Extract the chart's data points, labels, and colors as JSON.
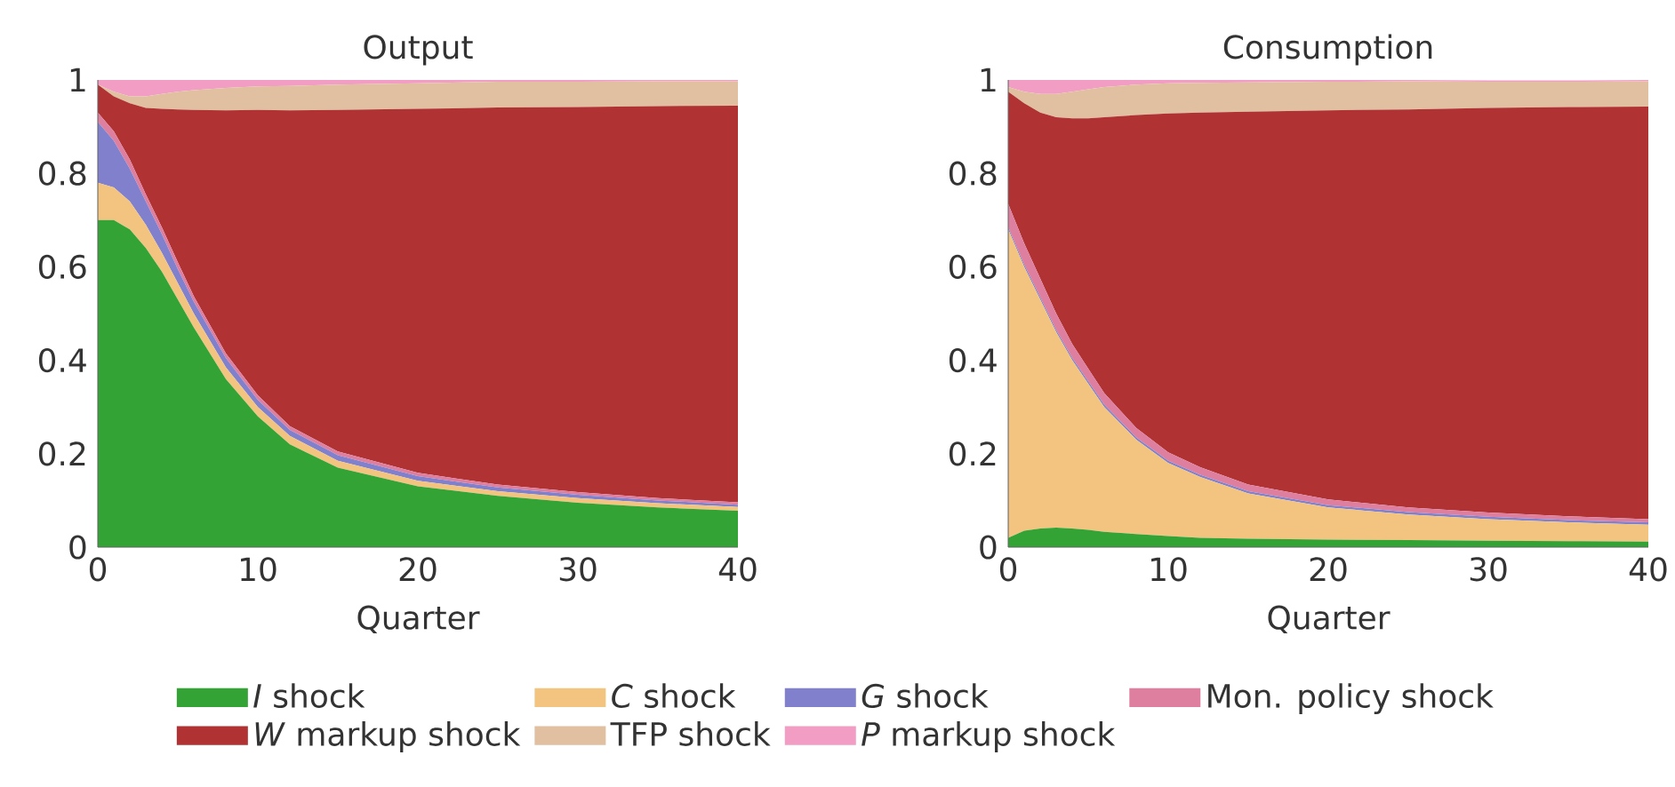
{
  "chart_data": [
    {
      "type": "area",
      "title": "Output",
      "xlabel": "Quarter",
      "stacked": true,
      "legend": "bottom",
      "x": [
        0,
        1,
        2,
        3,
        4,
        5,
        6,
        8,
        10,
        12,
        15,
        20,
        25,
        30,
        35,
        40
      ],
      "xlim": [
        0,
        40
      ],
      "xticks": [
        0,
        10,
        20,
        30,
        40
      ],
      "ylim": [
        0,
        1
      ],
      "yticks": [
        0,
        0.2,
        0.4,
        0.6,
        0.8,
        1
      ],
      "series": [
        {
          "name": "*I* shock",
          "color": "#33a335",
          "values": [
            0.7,
            0.7,
            0.68,
            0.64,
            0.59,
            0.53,
            0.47,
            0.36,
            0.28,
            0.22,
            0.17,
            0.13,
            0.11,
            0.095,
            0.085,
            0.078
          ]
        },
        {
          "name": "*C* shock",
          "color": "#f2c47f",
          "values": [
            0.08,
            0.07,
            0.06,
            0.05,
            0.04,
            0.035,
            0.03,
            0.025,
            0.02,
            0.018,
            0.015,
            0.012,
            0.01,
            0.01,
            0.009,
            0.008
          ]
        },
        {
          "name": "*G* shock",
          "color": "#8080cc",
          "values": [
            0.13,
            0.1,
            0.07,
            0.05,
            0.04,
            0.03,
            0.025,
            0.02,
            0.015,
            0.013,
            0.012,
            0.01,
            0.008,
            0.007,
            0.006,
            0.005
          ]
        },
        {
          "name": "Mon. policy shock",
          "color": "#de7f9f",
          "values": [
            0.02,
            0.02,
            0.02,
            0.015,
            0.015,
            0.015,
            0.012,
            0.01,
            0.01,
            0.008,
            0.008,
            0.007,
            0.006,
            0.006,
            0.005,
            0.005
          ]
        },
        {
          "name": "*W* markup shock",
          "color": "#b03232",
          "values": [
            0.06,
            0.075,
            0.12,
            0.185,
            0.253,
            0.327,
            0.399,
            0.52,
            0.611,
            0.676,
            0.731,
            0.779,
            0.807,
            0.824,
            0.839,
            0.849
          ]
        },
        {
          "name": "TFP shock",
          "color": "#e0c0a0",
          "values": [
            0.0,
            0.01,
            0.015,
            0.025,
            0.032,
            0.038,
            0.042,
            0.048,
            0.05,
            0.052,
            0.054,
            0.055,
            0.055,
            0.054,
            0.053,
            0.052
          ]
        },
        {
          "name": "*P* markup shock",
          "color": "#f29dc4",
          "values": [
            0.01,
            0.025,
            0.035,
            0.035,
            0.03,
            0.025,
            0.022,
            0.017,
            0.015,
            0.013,
            0.01,
            0.007,
            0.005,
            0.004,
            0.003,
            0.003
          ]
        }
      ]
    },
    {
      "type": "area",
      "title": "Consumption",
      "xlabel": "Quarter",
      "stacked": true,
      "x": [
        0,
        1,
        2,
        3,
        4,
        5,
        6,
        8,
        10,
        12,
        15,
        20,
        25,
        30,
        35,
        40
      ],
      "xlim": [
        0,
        40
      ],
      "xticks": [
        0,
        10,
        20,
        30,
        40
      ],
      "ylim": [
        0,
        1
      ],
      "yticks": [
        0,
        0.2,
        0.4,
        0.6,
        0.8,
        1
      ],
      "series": [
        {
          "color": "#33a335",
          "values": [
            0.02,
            0.035,
            0.04,
            0.042,
            0.04,
            0.037,
            0.033,
            0.028,
            0.024,
            0.02,
            0.018,
            0.016,
            0.015,
            0.014,
            0.013,
            0.012
          ]
        },
        {
          "color": "#f2c47f",
          "values": [
            0.66,
            0.565,
            0.49,
            0.418,
            0.36,
            0.313,
            0.267,
            0.202,
            0.156,
            0.13,
            0.097,
            0.069,
            0.055,
            0.046,
            0.04,
            0.036
          ]
        },
        {
          "color": "#8080cc",
          "values": [
            0.005,
            0.005,
            0.005,
            0.005,
            0.005,
            0.005,
            0.005,
            0.005,
            0.005,
            0.005,
            0.005,
            0.005,
            0.005,
            0.005,
            0.005,
            0.005
          ]
        },
        {
          "color": "#de7f9f",
          "values": [
            0.05,
            0.045,
            0.04,
            0.035,
            0.03,
            0.027,
            0.025,
            0.02,
            0.018,
            0.016,
            0.014,
            0.012,
            0.01,
            0.009,
            0.008,
            0.007
          ]
        },
        {
          "color": "#b03232",
          "values": [
            0.24,
            0.3,
            0.355,
            0.42,
            0.483,
            0.536,
            0.59,
            0.67,
            0.725,
            0.759,
            0.798,
            0.833,
            0.852,
            0.866,
            0.876,
            0.883
          ]
        },
        {
          "color": "#e0c0a0",
          "values": [
            0.01,
            0.025,
            0.04,
            0.05,
            0.057,
            0.062,
            0.065,
            0.065,
            0.065,
            0.064,
            0.063,
            0.061,
            0.06,
            0.056,
            0.054,
            0.054
          ]
        },
        {
          "color": "#f29dc4",
          "values": [
            0.015,
            0.025,
            0.03,
            0.03,
            0.025,
            0.02,
            0.015,
            0.01,
            0.007,
            0.006,
            0.005,
            0.004,
            0.003,
            0.003,
            0.003,
            0.003
          ]
        }
      ]
    }
  ]
}
